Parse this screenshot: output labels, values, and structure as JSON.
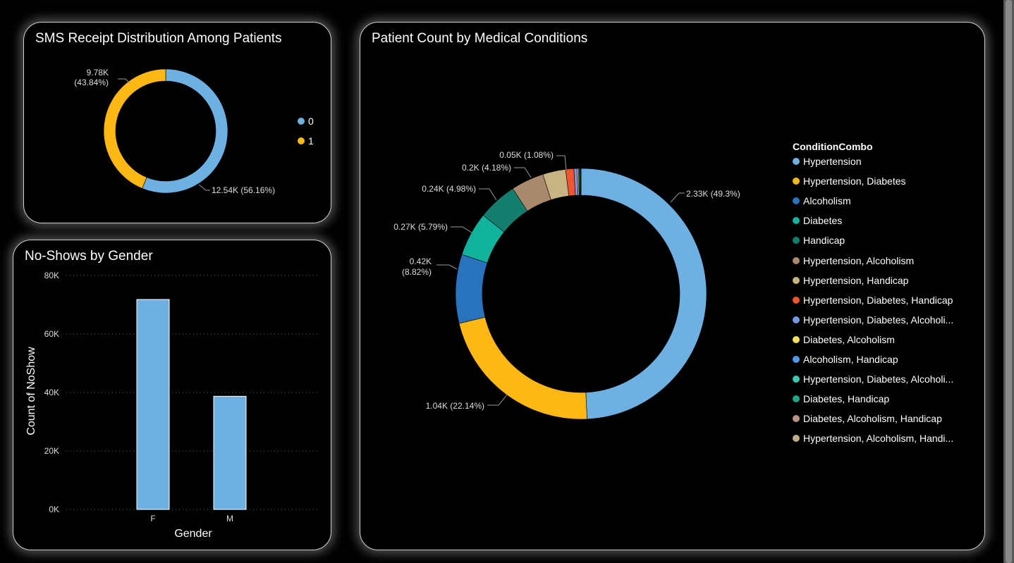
{
  "colors": {
    "blue": "#6FB0E2",
    "yellow": "#FDB814",
    "background": "#000000",
    "text": "#FFFFFF"
  },
  "sms_card": {
    "title": "SMS Receipt Distribution Among Patients",
    "legend": [
      {
        "label": "0",
        "color": "#6FB0E2"
      },
      {
        "label": "1",
        "color": "#FDB814"
      }
    ],
    "labels": {
      "one_value": "9.78K",
      "one_pct": "(43.84%)",
      "zero_value": "12.54K (56.16%)"
    }
  },
  "gender_card": {
    "title": "No-Shows by Gender"
  },
  "conditions_card": {
    "title": "Patient Count by Medical Conditions",
    "legend_title": "ConditionCombo",
    "labels": {
      "hypertension": "2.33K (49.3%)",
      "hyp_diabetes": "1.04K (22.14%)",
      "alcoholism_value": "0.42K",
      "alcoholism_pct": "(8.82%)",
      "diabetes": "0.27K (5.79%)",
      "handicap": "0.24K (4.98%)",
      "hyp_alcoholism": "0.2K (4.18%)",
      "hyp_handicap": "0.05K (1.08%)"
    }
  },
  "chart_data": [
    {
      "type": "pie",
      "title": "SMS Receipt Distribution Among Patients",
      "donut": true,
      "legend_position": "right",
      "slices": [
        {
          "label": "0",
          "value": 12540,
          "percent": 56.16,
          "color": "#6FB0E2"
        },
        {
          "label": "1",
          "value": 9780,
          "percent": 43.84,
          "color": "#FDB814"
        }
      ]
    },
    {
      "type": "bar",
      "title": "No-Shows by Gender",
      "categories": [
        "F",
        "M"
      ],
      "values": [
        71800,
        38700
      ],
      "xlabel": "Gender",
      "ylabel": "Count of NoShow",
      "ylim": [
        0,
        80000
      ],
      "yticks": [
        "0K",
        "20K",
        "40K",
        "60K",
        "80K"
      ],
      "grid": true,
      "color": "#6FB0E2"
    },
    {
      "type": "pie",
      "title": "Patient Count by Medical Conditions",
      "donut": true,
      "legend_title": "ConditionCombo",
      "legend_position": "right",
      "slices": [
        {
          "label": "Hypertension",
          "value": 2330,
          "percent": 49.3,
          "color": "#6FB0E2"
        },
        {
          "label": "Hypertension, Diabetes",
          "value": 1040,
          "percent": 22.14,
          "color": "#FDB814"
        },
        {
          "label": "Alcoholism",
          "value": 420,
          "percent": 8.82,
          "color": "#2872BE"
        },
        {
          "label": "Diabetes",
          "value": 270,
          "percent": 5.79,
          "color": "#12B39C"
        },
        {
          "label": "Handicap",
          "value": 240,
          "percent": 4.98,
          "color": "#137E6E"
        },
        {
          "label": "Hypertension, Alcoholism",
          "value": 200,
          "percent": 4.18,
          "color": "#A9896D"
        },
        {
          "label": "Hypertension, Handicap",
          "value": 140,
          "percent": 2.9,
          "color": "#C8B383"
        },
        {
          "label": "Hypertension, Diabetes, Handicap",
          "value": 50,
          "percent": 1.08,
          "color": "#F0562C"
        },
        {
          "label": "Hypertension, Diabetes, Alcoholi...",
          "value": 20,
          "percent": 0.4,
          "color": "#7496E2"
        },
        {
          "label": "Diabetes, Alcoholism",
          "value": 8,
          "percent": 0.15,
          "color": "#FCE05C"
        },
        {
          "label": "Alcoholism, Handicap",
          "value": 5,
          "percent": 0.1,
          "color": "#4F98EC"
        },
        {
          "label": "Hypertension, Diabetes, Alcoholi...",
          "value": 4,
          "percent": 0.08,
          "color": "#3BC8B0"
        },
        {
          "label": "Diabetes, Handicap",
          "value": 4,
          "percent": 0.07,
          "color": "#1FA585"
        },
        {
          "label": "Diabetes, Alcoholism, Handicap",
          "value": 1,
          "percent": 0.02,
          "color": "#B79684"
        },
        {
          "label": "Hypertension, Alcoholism, Handi...",
          "value": 1,
          "percent": 0.02,
          "color": "#BFAC8B"
        }
      ]
    }
  ]
}
